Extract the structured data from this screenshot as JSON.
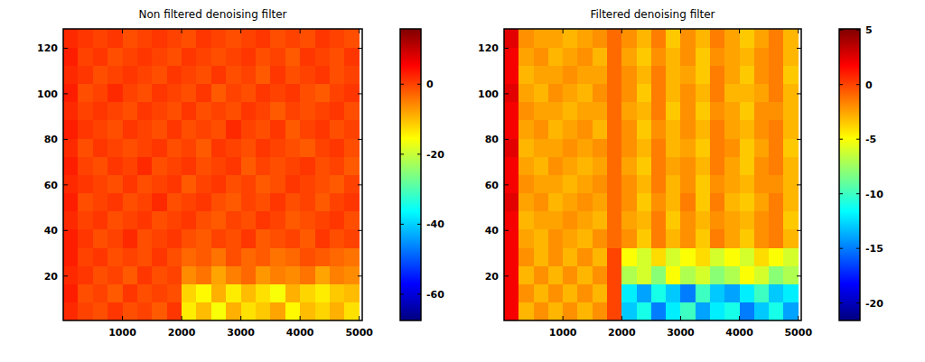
{
  "chart_data": [
    {
      "type": "heatmap",
      "title": "Non filtered denoising filter",
      "xlim": [
        0,
        5050
      ],
      "ylim": [
        0.5,
        128.5
      ],
      "xticks": [
        1000,
        2000,
        3000,
        4000,
        5000
      ],
      "yticks": [
        20,
        40,
        60,
        80,
        100,
        120
      ],
      "x_edges": [
        0,
        250,
        500,
        750,
        1000,
        1250,
        1500,
        1750,
        2000,
        2250,
        2500,
        2750,
        3000,
        3250,
        3500,
        3750,
        4000,
        4250,
        4500,
        4750,
        5000
      ],
      "y_edges": [
        0.5,
        8.5,
        16.5,
        24.5,
        32.5,
        40.5,
        48.5,
        56.5,
        64.5,
        72.5,
        80.5,
        88.5,
        96.5,
        104.5,
        112.5,
        120.5,
        128.5
      ],
      "cells": [
        [
          2,
          0,
          -1,
          1,
          -1,
          0,
          -2,
          1,
          -14,
          -10,
          -16,
          -9,
          -13,
          -11,
          -8,
          -15,
          -10,
          -12,
          -9,
          -13
        ],
        [
          3,
          -1,
          0,
          -2,
          1,
          -1,
          0,
          -1,
          -12,
          -15,
          -9,
          -14,
          -10,
          -13,
          -16,
          -9,
          -12,
          -14,
          -11,
          -10
        ],
        [
          2,
          1,
          -1,
          0,
          -2,
          1,
          -1,
          0,
          -6,
          -4,
          -8,
          -5,
          -3,
          -7,
          -5,
          -6,
          -4,
          -8,
          -5,
          -6
        ],
        [
          3,
          0,
          1,
          -1,
          0,
          -1,
          1,
          -1,
          -3,
          -2,
          -4,
          -1,
          -3,
          -2,
          -4,
          -3,
          -1,
          -2,
          -3,
          -4
        ],
        [
          3,
          1,
          -1,
          0,
          2,
          -1,
          0,
          1,
          -1,
          -2,
          0,
          -1,
          1,
          -2,
          -1,
          0,
          -2,
          1,
          -1,
          0
        ],
        [
          2,
          0,
          1,
          -1,
          0,
          1,
          -1,
          0,
          1,
          -1,
          -2,
          0,
          -1,
          1,
          0,
          -2,
          -1,
          0,
          1,
          -1
        ],
        [
          3,
          -1,
          0,
          1,
          -1,
          0,
          2,
          -1,
          0,
          1,
          -1,
          -2,
          0,
          -1,
          1,
          -1,
          0,
          -2,
          0,
          1
        ],
        [
          2,
          1,
          0,
          -1,
          1,
          -1,
          0,
          1,
          -2,
          0,
          1,
          -1,
          0,
          -2,
          -1,
          1,
          0,
          -1,
          -2,
          0
        ],
        [
          3,
          0,
          -1,
          1,
          0,
          2,
          -1,
          0,
          1,
          -1,
          0,
          1,
          -2,
          0,
          -1,
          0,
          1,
          -1,
          0,
          -2
        ],
        [
          2,
          -1,
          1,
          0,
          -1,
          0,
          1,
          -1,
          0,
          -2,
          1,
          0,
          -1,
          1,
          0,
          -1,
          -2,
          0,
          1,
          -1
        ],
        [
          3,
          1,
          0,
          -1,
          1,
          0,
          -1,
          1,
          -1,
          0,
          -1,
          2,
          0,
          -1,
          1,
          -2,
          0,
          1,
          -1,
          0
        ],
        [
          2,
          0,
          1,
          0,
          -1,
          1,
          0,
          -1,
          1,
          -1,
          0,
          -1,
          1,
          0,
          -2,
          0,
          -1,
          0,
          1,
          -1
        ],
        [
          3,
          -1,
          0,
          2,
          0,
          -1,
          1,
          0,
          -1,
          1,
          -2,
          0,
          -1,
          1,
          0,
          1,
          -1,
          -2,
          0,
          1
        ],
        [
          2,
          1,
          -1,
          0,
          1,
          0,
          -1,
          1,
          0,
          -1,
          1,
          -1,
          0,
          -2,
          1,
          -1,
          0,
          1,
          -1,
          0
        ],
        [
          3,
          0,
          1,
          -1,
          0,
          1,
          0,
          -1,
          1,
          0,
          -1,
          0,
          1,
          -1,
          0,
          -2,
          1,
          0,
          -1,
          1
        ],
        [
          2,
          1,
          0,
          1,
          -1,
          0,
          1,
          0,
          -1,
          1,
          0,
          -1,
          0,
          1,
          -1,
          0,
          -1,
          1,
          0,
          -1
        ]
      ],
      "colorbar_lim": [
        -67.5,
        15.8
      ],
      "colorbar_ticks": [
        -60,
        -40,
        -20,
        0
      ]
    },
    {
      "type": "heatmap",
      "title": "Filtered denoising filter",
      "xlim": [
        0,
        5050
      ],
      "ylim": [
        0.5,
        128.5
      ],
      "xticks": [
        1000,
        2000,
        3000,
        4000,
        5000
      ],
      "yticks": [
        20,
        40,
        60,
        80,
        100,
        120
      ],
      "x_edges": [
        0,
        250,
        500,
        750,
        1000,
        1250,
        1500,
        1750,
        2000,
        2250,
        2500,
        2750,
        3000,
        3250,
        3500,
        3750,
        4000,
        4250,
        4500,
        4750,
        5000
      ],
      "y_edges": [
        0.5,
        8.5,
        16.5,
        24.5,
        32.5,
        40.5,
        48.5,
        56.5,
        64.5,
        72.5,
        80.5,
        88.5,
        96.5,
        104.5,
        112.5,
        120.5,
        128.5
      ],
      "cells": [
        [
          2,
          -3,
          -2,
          -3,
          -2,
          -3,
          -2,
          0,
          -13,
          -11,
          -15,
          -12,
          -10,
          -14,
          -12,
          -11,
          -15,
          -13,
          -11,
          -14
        ],
        [
          2,
          -2,
          -3,
          -2,
          -3,
          -2,
          -3,
          0,
          -12,
          -14,
          -11,
          -13,
          -15,
          -10,
          -13,
          -14,
          -12,
          -10,
          -13,
          -12
        ],
        [
          2,
          -3,
          -2,
          -3,
          -2,
          -3,
          -2,
          0,
          -7,
          -6,
          -8,
          -5,
          -7,
          -6,
          -8,
          -7,
          -5,
          -6,
          -8,
          -7
        ],
        [
          2,
          -2,
          -3,
          -2,
          -3,
          -2,
          -3,
          0,
          -5,
          -6,
          -4,
          -6,
          -5,
          -4,
          -6,
          -5,
          -6,
          -4,
          -5,
          -6
        ],
        [
          2,
          -2.5,
          -3,
          -2,
          -2.5,
          -3,
          -2,
          -1,
          -2,
          -3.5,
          -1.5,
          -3,
          -2,
          -3.5,
          -1.5,
          -2.5,
          -3.5,
          -2,
          -1.5,
          -3
        ],
        [
          2,
          -3,
          -2.5,
          -2.5,
          -2,
          -2.5,
          -3,
          -1,
          -2.5,
          -3,
          -1.5,
          -3.5,
          -2,
          -3,
          -2,
          -2.5,
          -3,
          -2,
          -1.5,
          -3.5
        ],
        [
          2.5,
          -2.5,
          -2,
          -3,
          -2.5,
          -2,
          -2.5,
          -1,
          -2,
          -3.5,
          -2,
          -3,
          -1.5,
          -3.5,
          -1.5,
          -3,
          -3.5,
          -2.5,
          -1.5,
          -3
        ],
        [
          2,
          -2,
          -2.5,
          -2.5,
          -3,
          -2.5,
          -2,
          -1,
          -2,
          -3,
          -1.5,
          -3,
          -2,
          -3.5,
          -2,
          -2.5,
          -3,
          -2,
          -2,
          -3
        ],
        [
          2,
          -2.5,
          -3,
          -2,
          -2.5,
          -3,
          -2.5,
          -1,
          -2.5,
          -3.5,
          -1.5,
          -2.5,
          -2,
          -3,
          -1.5,
          -2.5,
          -3.5,
          -2,
          -1.5,
          -3
        ],
        [
          2.5,
          -3,
          -2.5,
          -2.5,
          -2,
          -2.5,
          -2,
          -1,
          -2,
          -3,
          -1.5,
          -3,
          -2.5,
          -3.5,
          -1.5,
          -2,
          -3.5,
          -2.5,
          -1.5,
          -3.5
        ],
        [
          2,
          -2.5,
          -2,
          -3,
          -2.5,
          -2,
          -3,
          -1,
          -2,
          -3.5,
          -2,
          -3,
          -2,
          -3,
          -1.5,
          -2.5,
          -3,
          -2,
          -1.5,
          -3
        ],
        [
          2,
          -2,
          -2.5,
          -2.5,
          -3,
          -2.5,
          -2.5,
          -1,
          -2.5,
          -3,
          -1.5,
          -3.5,
          -2,
          -3.5,
          -2,
          -2.5,
          -3.5,
          -2,
          -2,
          -3
        ],
        [
          2.5,
          -2.5,
          -3,
          -2,
          -2.5,
          -3,
          -2,
          -1,
          -2,
          -3.5,
          -1.5,
          -3,
          -2,
          -3,
          -1.5,
          -3,
          -3,
          -2.5,
          -1.5,
          -3
        ],
        [
          2,
          -3,
          -2.5,
          -2.5,
          -2,
          -2.5,
          -2.5,
          -1,
          -2,
          -3,
          -1.5,
          -3,
          -2.5,
          -3.5,
          -1.5,
          -2.5,
          -3.5,
          -2,
          -1.5,
          -3.5
        ],
        [
          2,
          -2.5,
          -2,
          -3,
          -2.5,
          -2,
          -3,
          -1,
          -2.5,
          -3.5,
          -2,
          -3,
          -2,
          -3.5,
          -2,
          -2.5,
          -3,
          -2,
          -1.5,
          -3
        ],
        [
          2.5,
          -2,
          -2.5,
          -2.5,
          -3,
          -2.5,
          -2,
          -1,
          -2,
          -3,
          -1.5,
          -3.5,
          -2,
          -3,
          -1.5,
          -2.5,
          -3.5,
          -2.5,
          -1.5,
          -3
        ]
      ],
      "colorbar_lim": [
        -21.6,
        5.1
      ],
      "colorbar_ticks": [
        -20,
        -15,
        -10,
        -5,
        0,
        5
      ]
    }
  ]
}
